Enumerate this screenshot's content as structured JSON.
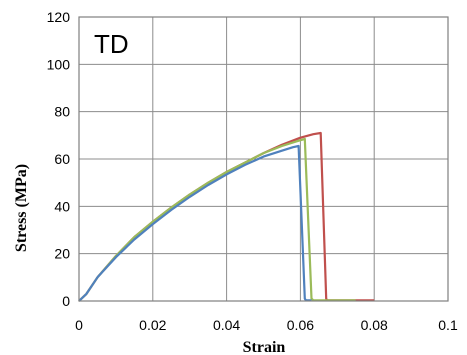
{
  "chart_data": {
    "type": "line",
    "title": "",
    "panel_label": "TD",
    "xlabel": "Strain",
    "ylabel": "Stress (MPa)",
    "xlim": [
      0,
      0.1
    ],
    "ylim": [
      0,
      120
    ],
    "xticks": [
      0,
      0.02,
      0.04,
      0.06,
      0.08,
      0.1
    ],
    "xtick_labels": [
      "0",
      "0.02",
      "0.04",
      "0.06",
      "0.08",
      "0.1"
    ],
    "yticks": [
      0,
      20,
      40,
      60,
      80,
      100,
      120
    ],
    "ytick_labels": [
      "0",
      "20",
      "40",
      "60",
      "80",
      "100",
      "120"
    ],
    "grid": true,
    "legend": "none",
    "series": [
      {
        "color": "#c0504d",
        "x": [
          0,
          0.002,
          0.005,
          0.01,
          0.015,
          0.02,
          0.025,
          0.03,
          0.035,
          0.04,
          0.045,
          0.05,
          0.055,
          0.06,
          0.0635,
          0.0655,
          0.067,
          0.0672,
          0.07,
          0.075,
          0.08
        ],
        "y": [
          0,
          3,
          10,
          19,
          27,
          33.5,
          39.5,
          45,
          50,
          54.5,
          58.5,
          62.5,
          66,
          69,
          70.5,
          71,
          1,
          0.3,
          0.3,
          0.3,
          0.3
        ]
      },
      {
        "color": "#9bbb59",
        "x": [
          0,
          0.002,
          0.005,
          0.01,
          0.015,
          0.02,
          0.025,
          0.03,
          0.035,
          0.04,
          0.045,
          0.05,
          0.055,
          0.059,
          0.0612,
          0.063,
          0.0635,
          0.066,
          0.07,
          0.075
        ],
        "y": [
          0,
          3,
          10,
          19,
          27,
          33.5,
          39.5,
          45,
          50,
          54.5,
          58.5,
          62.5,
          65.5,
          67.5,
          68.5,
          1,
          0.3,
          0.3,
          0.3,
          0.3
        ]
      },
      {
        "color": "#4f81bd",
        "x": [
          0,
          0.002,
          0.005,
          0.01,
          0.015,
          0.02,
          0.025,
          0.03,
          0.035,
          0.04,
          0.045,
          0.05,
          0.055,
          0.058,
          0.0595,
          0.0612,
          0.0615,
          0.063
        ],
        "y": [
          0,
          3,
          10,
          18.5,
          26,
          32.5,
          38.5,
          44,
          49,
          53.5,
          57.5,
          61,
          63.5,
          65,
          65.5,
          1,
          0.3,
          0.3
        ]
      }
    ]
  }
}
